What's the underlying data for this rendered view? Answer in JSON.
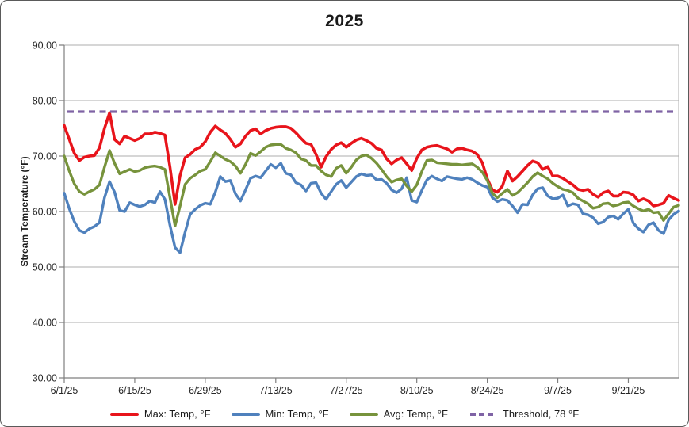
{
  "title": "2025",
  "y_axis": {
    "label": "Stream Temperature (°F)",
    "tick_labels": [
      "90.00",
      "80.00",
      "70.00",
      "60.00",
      "50.00",
      "40.00",
      "30.00"
    ],
    "tick_values": [
      90,
      80,
      70,
      60,
      50,
      40,
      30
    ],
    "min": 30,
    "max": 90
  },
  "x_axis": {
    "tick_labels": [
      "6/1/25",
      "6/15/25",
      "6/29/25",
      "7/13/25",
      "7/27/25",
      "8/10/25",
      "8/24/25",
      "9/7/25",
      "9/21/25"
    ],
    "tick_indices": [
      0,
      14,
      28,
      42,
      56,
      70,
      84,
      98,
      112
    ]
  },
  "colors": {
    "max": "#E8141B",
    "min": "#4F81BD",
    "avg": "#77933C",
    "threshold": "#7F63A5",
    "gridline": "#ACACAC",
    "axis": "#7F7F7F"
  },
  "legend": [
    {
      "label": "Max: Temp, °F",
      "color": "#E8141B",
      "style": "solid",
      "key": "max"
    },
    {
      "label": "Min: Temp, °F",
      "color": "#4F81BD",
      "style": "solid",
      "key": "min"
    },
    {
      "label": "Avg: Temp, °F",
      "color": "#77933C",
      "style": "solid",
      "key": "avg"
    },
    {
      "label": "Threshold, 78 °F",
      "color": "#7F63A5",
      "style": "dashed",
      "key": "threshold"
    }
  ],
  "chart_data": {
    "type": "line",
    "title": "2025",
    "xlabel": "",
    "ylabel": "Stream Temperature (°F)",
    "ylim": [
      30,
      90
    ],
    "grid": "horizontal",
    "legend_position": "bottom",
    "x": [
      "6/1/25",
      "6/2/25",
      "6/3/25",
      "6/4/25",
      "6/5/25",
      "6/6/25",
      "6/7/25",
      "6/8/25",
      "6/9/25",
      "6/10/25",
      "6/11/25",
      "6/12/25",
      "6/13/25",
      "6/14/25",
      "6/15/25",
      "6/16/25",
      "6/17/25",
      "6/18/25",
      "6/19/25",
      "6/20/25",
      "6/21/25",
      "6/22/25",
      "6/23/25",
      "6/24/25",
      "6/25/25",
      "6/26/25",
      "6/27/25",
      "6/28/25",
      "6/29/25",
      "6/30/25",
      "7/1/25",
      "7/2/25",
      "7/3/25",
      "7/4/25",
      "7/5/25",
      "7/6/25",
      "7/7/25",
      "7/8/25",
      "7/9/25",
      "7/10/25",
      "7/11/25",
      "7/12/25",
      "7/13/25",
      "7/14/25",
      "7/15/25",
      "7/16/25",
      "7/17/25",
      "7/18/25",
      "7/19/25",
      "7/20/25",
      "7/21/25",
      "7/22/25",
      "7/23/25",
      "7/24/25",
      "7/25/25",
      "7/26/25",
      "7/27/25",
      "7/28/25",
      "7/29/25",
      "7/30/25",
      "7/31/25",
      "8/1/25",
      "8/2/25",
      "8/3/25",
      "8/4/25",
      "8/5/25",
      "8/6/25",
      "8/7/25",
      "8/8/25",
      "8/9/25",
      "8/10/25",
      "8/11/25",
      "8/12/25",
      "8/13/25",
      "8/14/25",
      "8/15/25",
      "8/16/25",
      "8/17/25",
      "8/18/25",
      "8/19/25",
      "8/20/25",
      "8/21/25",
      "8/22/25",
      "8/23/25",
      "8/24/25",
      "8/25/25",
      "8/26/25",
      "8/27/25",
      "8/28/25",
      "8/29/25",
      "8/30/25",
      "8/31/25",
      "9/1/25",
      "9/2/25",
      "9/3/25",
      "9/4/25",
      "9/5/25",
      "9/6/25",
      "9/7/25",
      "9/8/25",
      "9/9/25",
      "9/10/25",
      "9/11/25",
      "9/12/25",
      "9/13/25",
      "9/14/25",
      "9/15/25",
      "9/16/25",
      "9/17/25",
      "9/18/25",
      "9/19/25",
      "9/20/25",
      "9/21/25",
      "9/22/25",
      "9/23/25",
      "9/24/25",
      "9/25/25",
      "9/26/25",
      "9/27/25",
      "9/28/25",
      "9/29/25",
      "9/30/25",
      "10/1/25"
    ],
    "series": [
      {
        "name": "Max: Temp, °F",
        "key": "max",
        "color": "#E8141B",
        "style": "solid",
        "width": 3.6,
        "values": [
          75.5,
          73.0,
          70.5,
          69.2,
          69.8,
          70.0,
          70.1,
          71.5,
          75.0,
          77.8,
          73.0,
          72.2,
          73.6,
          73.2,
          72.8,
          73.2,
          74.0,
          74.0,
          74.3,
          74.1,
          73.8,
          68.0,
          61.3,
          66.5,
          69.7,
          70.3,
          71.2,
          71.6,
          72.6,
          74.3,
          75.4,
          74.7,
          74.1,
          73.0,
          71.6,
          72.2,
          73.6,
          74.6,
          74.9,
          74.0,
          74.6,
          75.0,
          75.2,
          75.3,
          75.3,
          75.0,
          74.2,
          73.2,
          72.3,
          72.1,
          70.3,
          68.0,
          69.9,
          71.2,
          72.0,
          72.4,
          71.6,
          72.3,
          72.9,
          73.2,
          72.8,
          72.3,
          71.4,
          71.1,
          69.5,
          68.6,
          69.3,
          69.7,
          68.6,
          67.4,
          69.6,
          71.1,
          71.6,
          71.8,
          71.9,
          71.6,
          71.3,
          70.7,
          71.3,
          71.4,
          71.1,
          70.9,
          70.3,
          68.8,
          65.9,
          63.9,
          63.5,
          64.6,
          67.3,
          65.5,
          66.3,
          67.3,
          68.3,
          69.1,
          68.8,
          67.6,
          68.1,
          66.4,
          66.4,
          66.0,
          65.4,
          64.8,
          64.0,
          63.8,
          64.0,
          63.1,
          62.6,
          63.4,
          63.7,
          62.8,
          62.8,
          63.5,
          63.4,
          63.0,
          61.9,
          62.3,
          61.9,
          61.0,
          61.2,
          61.5,
          62.9,
          62.4,
          62.0
        ]
      },
      {
        "name": "Min: Temp, °F",
        "key": "min",
        "color": "#4F81BD",
        "style": "solid",
        "width": 3.4,
        "values": [
          63.3,
          60.5,
          58.2,
          56.6,
          56.2,
          56.9,
          57.3,
          58.0,
          62.5,
          65.4,
          63.5,
          60.2,
          60.0,
          61.6,
          61.2,
          60.9,
          61.2,
          61.9,
          61.6,
          63.6,
          62.2,
          57.5,
          53.5,
          52.6,
          56.3,
          59.5,
          60.4,
          61.1,
          61.5,
          61.3,
          63.5,
          66.3,
          65.4,
          65.6,
          63.2,
          61.9,
          63.9,
          66.0,
          66.4,
          66.1,
          67.3,
          68.5,
          67.9,
          68.7,
          66.9,
          66.6,
          65.2,
          64.8,
          63.7,
          65.1,
          65.2,
          63.3,
          62.2,
          63.6,
          64.9,
          65.6,
          64.3,
          65.3,
          66.3,
          66.8,
          66.5,
          66.6,
          65.7,
          65.8,
          65.1,
          63.9,
          63.4,
          64.1,
          66.1,
          62.0,
          61.7,
          63.8,
          65.7,
          66.4,
          65.9,
          65.5,
          66.3,
          66.1,
          65.9,
          65.8,
          66.1,
          65.8,
          65.2,
          64.7,
          64.4,
          62.5,
          61.8,
          62.2,
          62.0,
          61.0,
          59.8,
          61.3,
          61.2,
          63.0,
          64.1,
          64.3,
          62.8,
          62.3,
          62.4,
          63.0,
          61.0,
          61.4,
          61.2,
          59.6,
          59.4,
          58.9,
          57.8,
          58.1,
          59.0,
          59.2,
          58.6,
          59.6,
          60.4,
          57.9,
          56.9,
          56.3,
          57.6,
          58.0,
          56.6,
          56.0,
          58.5,
          59.5,
          60.1
        ]
      },
      {
        "name": "Avg: Temp, °F",
        "key": "avg",
        "color": "#77933C",
        "style": "solid",
        "width": 3.4,
        "values": [
          70.0,
          67.3,
          65.0,
          63.6,
          63.1,
          63.6,
          64.0,
          64.8,
          68.0,
          71.0,
          68.7,
          66.8,
          67.2,
          67.6,
          67.2,
          67.4,
          67.9,
          68.1,
          68.2,
          68.0,
          67.6,
          62.5,
          57.4,
          61.0,
          64.9,
          66.0,
          66.6,
          67.3,
          67.6,
          69.0,
          70.6,
          70.0,
          69.4,
          69.0,
          68.2,
          66.9,
          68.5,
          70.5,
          70.1,
          70.8,
          71.6,
          72.0,
          72.1,
          72.1,
          71.4,
          71.1,
          70.6,
          69.5,
          69.2,
          68.3,
          68.3,
          67.3,
          66.6,
          66.3,
          67.8,
          68.3,
          66.9,
          68.0,
          69.3,
          70.0,
          70.2,
          69.6,
          68.7,
          67.6,
          66.3,
          65.3,
          65.7,
          65.9,
          64.6,
          63.6,
          64.8,
          67.2,
          69.2,
          69.3,
          68.8,
          68.7,
          68.6,
          68.5,
          68.5,
          68.4,
          68.5,
          68.6,
          68.0,
          67.1,
          65.6,
          63.3,
          62.5,
          63.3,
          64.0,
          62.9,
          63.4,
          64.3,
          65.2,
          66.3,
          67.0,
          66.4,
          65.9,
          65.1,
          64.5,
          64.0,
          63.8,
          63.4,
          62.4,
          61.9,
          61.4,
          60.6,
          60.8,
          61.4,
          61.5,
          61.0,
          61.2,
          61.6,
          61.7,
          61.0,
          60.5,
          60.1,
          60.4,
          59.8,
          59.9,
          58.4,
          59.6,
          60.8,
          61.1
        ]
      },
      {
        "name": "Threshold, 78 °F",
        "key": "threshold",
        "color": "#7F63A5",
        "style": "dashed",
        "width": 3.2,
        "constant": 78
      }
    ]
  }
}
